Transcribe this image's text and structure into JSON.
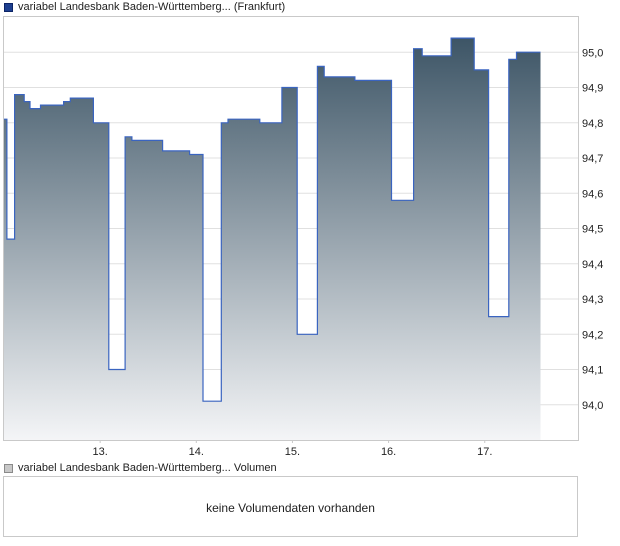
{
  "legend": {
    "price_label": "variabel Landesbank Baden-Württemberg... (Frankfurt)",
    "volume_label": "variabel Landesbank Baden-Württemberg... Volumen"
  },
  "volume": {
    "message": "keine Volumendaten vorhanden"
  },
  "colors": {
    "line": "#3a64c0",
    "fill_top": "#3d5566",
    "fill_bottom": "#f4f5f7",
    "grid": "#e0e0e0",
    "frame": "#c9c9c9"
  },
  "chart_data": {
    "type": "area",
    "title": "",
    "xlabel": "",
    "ylabel": "",
    "x_ticks": [
      "13.",
      "14.",
      "15.",
      "16.",
      "17."
    ],
    "y_ticks": [
      "94,0",
      "94,1",
      "94,2",
      "94,3",
      "94,4",
      "94,5",
      "94,6",
      "94,7",
      "94,8",
      "94,9",
      "95,0"
    ],
    "ylim": [
      93.9,
      95.1
    ],
    "xlim": [
      12.0,
      17.97
    ],
    "grid": "horizontal",
    "step": true,
    "series": [
      {
        "points": [
          [
            12.0,
            94.81
          ],
          [
            12.03,
            94.47
          ],
          [
            12.11,
            94.88
          ],
          [
            12.21,
            94.86
          ],
          [
            12.27,
            94.84
          ],
          [
            12.38,
            94.85
          ],
          [
            12.62,
            94.86
          ],
          [
            12.69,
            94.87
          ],
          [
            12.93,
            94.8
          ],
          [
            13.09,
            94.1
          ],
          [
            13.26,
            94.76
          ],
          [
            13.33,
            94.75
          ],
          [
            13.65,
            94.72
          ],
          [
            13.93,
            94.71
          ],
          [
            14.07,
            94.01
          ],
          [
            14.26,
            94.8
          ],
          [
            14.33,
            94.81
          ],
          [
            14.66,
            94.8
          ],
          [
            14.89,
            94.9
          ],
          [
            15.05,
            94.2
          ],
          [
            15.26,
            94.96
          ],
          [
            15.33,
            94.93
          ],
          [
            15.65,
            94.92
          ],
          [
            16.03,
            94.58
          ],
          [
            16.26,
            95.01
          ],
          [
            16.35,
            94.99
          ],
          [
            16.65,
            95.04
          ],
          [
            16.89,
            94.95
          ],
          [
            17.04,
            94.25
          ],
          [
            17.25,
            94.98
          ],
          [
            17.33,
            95.0
          ],
          [
            17.58,
            95.0
          ]
        ]
      }
    ]
  }
}
